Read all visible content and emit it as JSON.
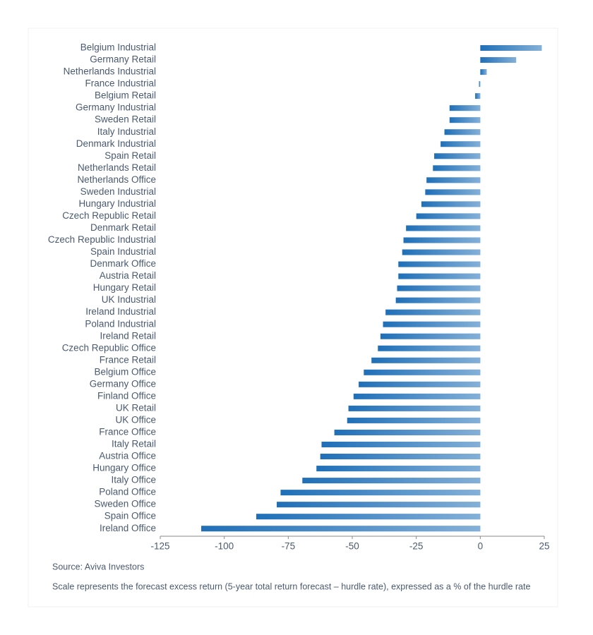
{
  "chart_data": {
    "type": "hbar",
    "categories": [
      "Belgium Industrial",
      "Germany Retail",
      "Netherlands Industrial",
      "France Industrial",
      "Belgium Retail",
      "Germany Industrial",
      "Sweden Retail",
      "Italy Industrial",
      "Denmark Industrial",
      "Spain Retail",
      "Netherlands Retail",
      "Netherlands Office",
      "Sweden Industrial",
      "Hungary Industrial",
      "Czech Republic Retail",
      "Denmark Retail",
      "Czech Republic Industrial",
      "Spain Industrial",
      "Denmark Office",
      "Austria Retail",
      "Hungary Retail",
      "UK Industrial",
      "Ireland Industrial",
      "Poland Industrial",
      "Ireland Retail",
      "Czech Republic Office",
      "France Retail",
      "Belgium Office",
      "Germany Office",
      "Finland Office",
      "UK Retail",
      "UK Office",
      "France Office",
      "Italy Retail",
      "Austria Office",
      "Hungary Office",
      "Italy Office",
      "Poland Office",
      "Sweden Office",
      "Spain Office",
      "Ireland Office"
    ],
    "values": [
      24,
      14,
      2.5,
      -0.5,
      -2,
      -12,
      -12,
      -14,
      -15.5,
      -18,
      -18.5,
      -21,
      -21.5,
      -23,
      -25,
      -29,
      -30,
      -30.5,
      -32,
      -32,
      -32.5,
      -33,
      -37,
      -38,
      -39,
      -40,
      -42.5,
      -45.5,
      -47.5,
      -49.5,
      -51.5,
      -52,
      -57,
      -62,
      -62.5,
      -64,
      -69.5,
      -78,
      -79.5,
      -87.5,
      -109
    ],
    "color": "#1f6fb8",
    "xlim": [
      -125,
      25
    ],
    "xticks": [
      -125,
      -100,
      -75,
      -50,
      -25,
      0,
      25
    ],
    "source": "Source: Aviva Investors",
    "note": "Scale represents the forecast excess return (5-year total return forecast – hurdle rate), expressed as a % of the hurdle rate"
  }
}
